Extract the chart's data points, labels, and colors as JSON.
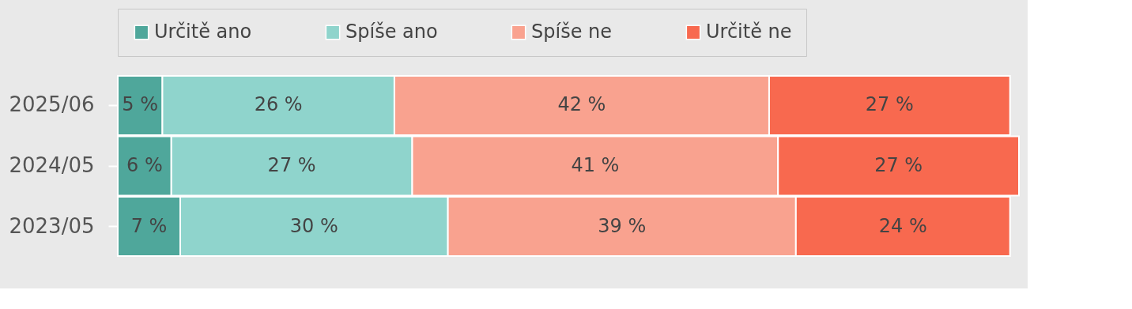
{
  "chart_data": {
    "type": "bar",
    "orientation": "horizontal",
    "stacked": true,
    "categories": [
      "2025/06",
      "2024/05",
      "2023/05"
    ],
    "series": [
      {
        "name": "Určitě ano",
        "color": "#4fa79b",
        "values": [
          5,
          6,
          7
        ],
        "value_labels": [
          "5 %",
          "6 %",
          "7 %"
        ]
      },
      {
        "name": "Spíše ano",
        "color": "#8fd4cc",
        "values": [
          26,
          27,
          30
        ],
        "value_labels": [
          "26 %",
          "27 %",
          "30 %"
        ]
      },
      {
        "name": "Spíše ne",
        "color": "#f9a28f",
        "values": [
          42,
          41,
          39
        ],
        "value_labels": [
          "42 %",
          "41 %",
          "39 %"
        ]
      },
      {
        "name": "Určitě ne",
        "color": "#f8694f",
        "values": [
          27,
          27,
          24
        ],
        "value_labels": [
          "27 %",
          "27 %",
          "24 %"
        ]
      }
    ],
    "legend": "top",
    "grid": false
  }
}
